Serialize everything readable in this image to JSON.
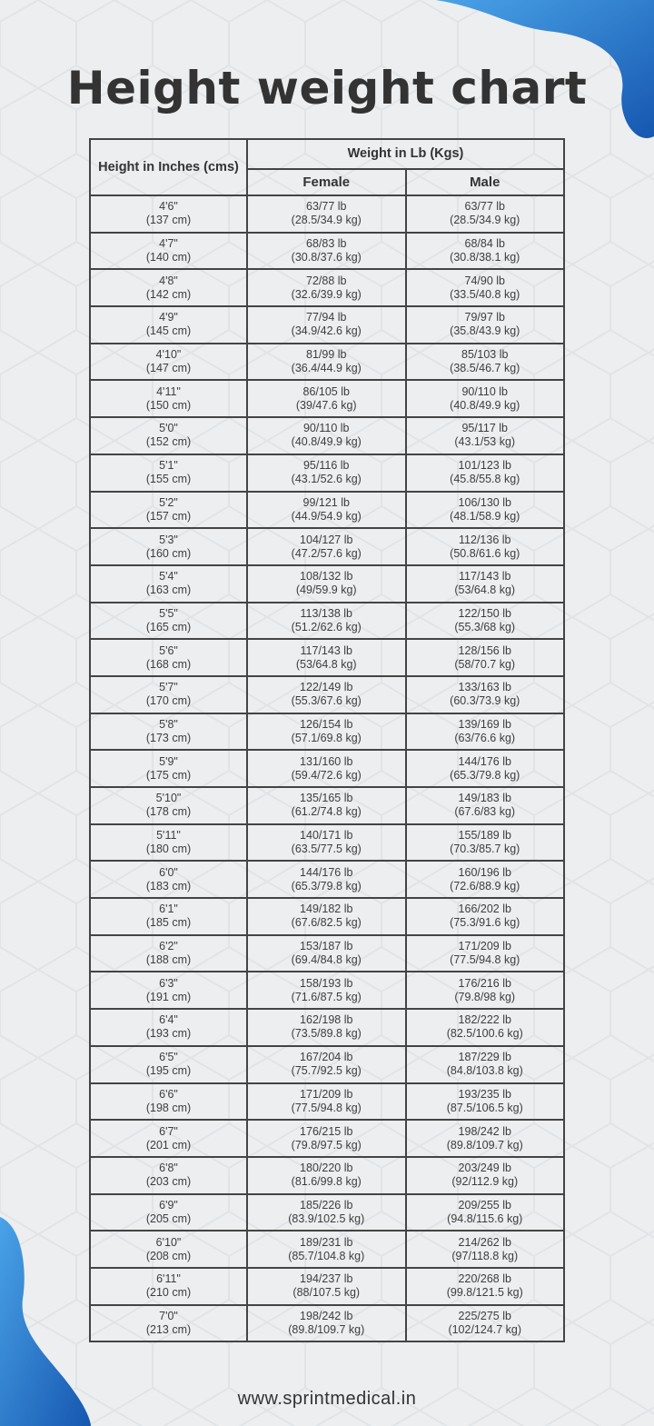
{
  "title": "Height weight chart",
  "table": {
    "height_header": "Height in Inches (cms)",
    "weight_header": "Weight in Lb (Kgs)",
    "female_header": "Female",
    "male_header": "Male",
    "rows": [
      {
        "height": "4'6\"",
        "cm": "(137 cm)",
        "female_lb": "63/77 lb",
        "female_kg": "(28.5/34.9 kg)",
        "male_lb": "63/77 lb",
        "male_kg": "(28.5/34.9 kg)"
      },
      {
        "height": "4'7\"",
        "cm": "(140 cm)",
        "female_lb": "68/83 lb",
        "female_kg": "(30.8/37.6 kg)",
        "male_lb": "68/84 lb",
        "male_kg": "(30.8/38.1 kg)"
      },
      {
        "height": "4'8\"",
        "cm": "(142 cm)",
        "female_lb": "72/88 lb",
        "female_kg": "(32.6/39.9 kg)",
        "male_lb": "74/90 lb",
        "male_kg": "(33.5/40.8 kg)"
      },
      {
        "height": "4'9\"",
        "cm": "(145 cm)",
        "female_lb": "77/94 lb",
        "female_kg": "(34.9/42.6 kg)",
        "male_lb": "79/97 lb",
        "male_kg": "(35.8/43.9 kg)"
      },
      {
        "height": "4'10\"",
        "cm": "(147 cm)",
        "female_lb": "81/99 lb",
        "female_kg": "(36.4/44.9 kg)",
        "male_lb": "85/103 lb",
        "male_kg": "(38.5/46.7 kg)"
      },
      {
        "height": "4'11\"",
        "cm": "(150 cm)",
        "female_lb": "86/105 lb",
        "female_kg": "(39/47.6 kg)",
        "male_lb": "90/110 lb",
        "male_kg": "(40.8/49.9 kg)"
      },
      {
        "height": "5'0\"",
        "cm": "(152 cm)",
        "female_lb": "90/110 lb",
        "female_kg": "(40.8/49.9 kg)",
        "male_lb": "95/117 lb",
        "male_kg": "(43.1/53 kg)"
      },
      {
        "height": "5'1\"",
        "cm": "(155 cm)",
        "female_lb": "95/116 lb",
        "female_kg": "(43.1/52.6 kg)",
        "male_lb": "101/123 lb",
        "male_kg": "(45.8/55.8 kg)"
      },
      {
        "height": "5'2\"",
        "cm": "(157 cm)",
        "female_lb": "99/121 lb",
        "female_kg": "(44.9/54.9 kg)",
        "male_lb": "106/130 lb",
        "male_kg": "(48.1/58.9 kg)"
      },
      {
        "height": "5'3\"",
        "cm": "(160 cm)",
        "female_lb": "104/127 lb",
        "female_kg": "(47.2/57.6 kg)",
        "male_lb": "112/136 lb",
        "male_kg": "(50.8/61.6 kg)"
      },
      {
        "height": "5'4\"",
        "cm": "(163 cm)",
        "female_lb": "108/132 lb",
        "female_kg": "(49/59.9 kg)",
        "male_lb": "117/143 lb",
        "male_kg": "(53/64.8 kg)"
      },
      {
        "height": "5'5\"",
        "cm": "(165 cm)",
        "female_lb": "113/138 lb",
        "female_kg": "(51.2/62.6 kg)",
        "male_lb": "122/150 lb",
        "male_kg": "(55.3/68 kg)"
      },
      {
        "height": "5'6\"",
        "cm": "(168 cm)",
        "female_lb": "117/143 lb",
        "female_kg": "(53/64.8 kg)",
        "male_lb": "128/156 lb",
        "male_kg": "(58/70.7 kg)"
      },
      {
        "height": "5'7\"",
        "cm": "(170 cm)",
        "female_lb": "122/149 lb",
        "female_kg": "(55.3/67.6 kg)",
        "male_lb": "133/163 lb",
        "male_kg": "(60.3/73.9 kg)"
      },
      {
        "height": "5'8\"",
        "cm": "(173 cm)",
        "female_lb": "126/154 lb",
        "female_kg": "(57.1/69.8 kg)",
        "male_lb": "139/169 lb",
        "male_kg": "(63/76.6 kg)"
      },
      {
        "height": "5'9\"",
        "cm": "(175 cm)",
        "female_lb": "131/160 lb",
        "female_kg": "(59.4/72.6 kg)",
        "male_lb": "144/176 lb",
        "male_kg": "(65.3/79.8 kg)"
      },
      {
        "height": "5'10\"",
        "cm": "(178 cm)",
        "female_lb": "135/165 lb",
        "female_kg": "(61.2/74.8 kg)",
        "male_lb": "149/183 lb",
        "male_kg": "(67.6/83 kg)"
      },
      {
        "height": "5'11\"",
        "cm": "(180 cm)",
        "female_lb": "140/171 lb",
        "female_kg": "(63.5/77.5 kg)",
        "male_lb": "155/189 lb",
        "male_kg": "(70.3/85.7 kg)"
      },
      {
        "height": "6'0\"",
        "cm": "(183 cm)",
        "female_lb": "144/176 lb",
        "female_kg": "(65.3/79.8 kg)",
        "male_lb": "160/196 lb",
        "male_kg": "(72.6/88.9 kg)"
      },
      {
        "height": "6'1\"",
        "cm": "(185 cm)",
        "female_lb": "149/182 lb",
        "female_kg": "(67.6/82.5 kg)",
        "male_lb": "166/202 lb",
        "male_kg": "(75.3/91.6 kg)"
      },
      {
        "height": "6'2\"",
        "cm": "(188 cm)",
        "female_lb": "153/187 lb",
        "female_kg": "(69.4/84.8 kg)",
        "male_lb": "171/209 lb",
        "male_kg": "(77.5/94.8 kg)"
      },
      {
        "height": "6'3\"",
        "cm": "(191 cm)",
        "female_lb": "158/193 lb",
        "female_kg": "(71.6/87.5 kg)",
        "male_lb": "176/216 lb",
        "male_kg": "(79.8/98 kg)"
      },
      {
        "height": "6'4\"",
        "cm": "(193 cm)",
        "female_lb": "162/198 lb",
        "female_kg": "(73.5/89.8 kg)",
        "male_lb": "182/222 lb",
        "male_kg": "(82.5/100.6 kg)"
      },
      {
        "height": "6'5\"",
        "cm": "(195 cm)",
        "female_lb": "167/204 lb",
        "female_kg": "(75.7/92.5 kg)",
        "male_lb": "187/229 lb",
        "male_kg": "(84.8/103.8 kg)"
      },
      {
        "height": "6'6\"",
        "cm": "(198 cm)",
        "female_lb": "171/209 lb",
        "female_kg": "(77.5/94.8 kg)",
        "male_lb": "193/235 lb",
        "male_kg": "(87.5/106.5 kg)"
      },
      {
        "height": "6'7\"",
        "cm": "(201 cm)",
        "female_lb": "176/215 lb",
        "female_kg": "(79.8/97.5 kg)",
        "male_lb": "198/242 lb",
        "male_kg": "(89.8/109.7 kg)"
      },
      {
        "height": "6'8\"",
        "cm": "(203 cm)",
        "female_lb": "180/220 lb",
        "female_kg": "(81.6/99.8 kg)",
        "male_lb": "203/249 lb",
        "male_kg": "(92/112.9 kg)"
      },
      {
        "height": "6'9\"",
        "cm": "(205 cm)",
        "female_lb": "185/226 lb",
        "female_kg": "(83.9/102.5 kg)",
        "male_lb": "209/255 lb",
        "male_kg": "(94.8/115.6 kg)"
      },
      {
        "height": "6'10\"",
        "cm": "(208 cm)",
        "female_lb": "189/231 lb",
        "female_kg": "(85.7/104.8 kg)",
        "male_lb": "214/262 lb",
        "male_kg": "(97/118.8 kg)"
      },
      {
        "height": "6'11\"",
        "cm": "(210 cm)",
        "female_lb": "194/237 lb",
        "female_kg": "(88/107.5 kg)",
        "male_lb": "220/268 lb",
        "male_kg": "(99.8/121.5 kg)"
      },
      {
        "height": "7'0\"",
        "cm": "(213 cm)",
        "female_lb": "198/242 lb",
        "female_kg": "(89.8/109.7 kg)",
        "male_lb": "225/275 lb",
        "male_kg": "(102/124.7 kg)"
      }
    ]
  },
  "footer": "www.sprintmedical.in",
  "colors": {
    "accent_blue": "#1f6fc4",
    "background": "#eceef0",
    "text": "#333333"
  }
}
